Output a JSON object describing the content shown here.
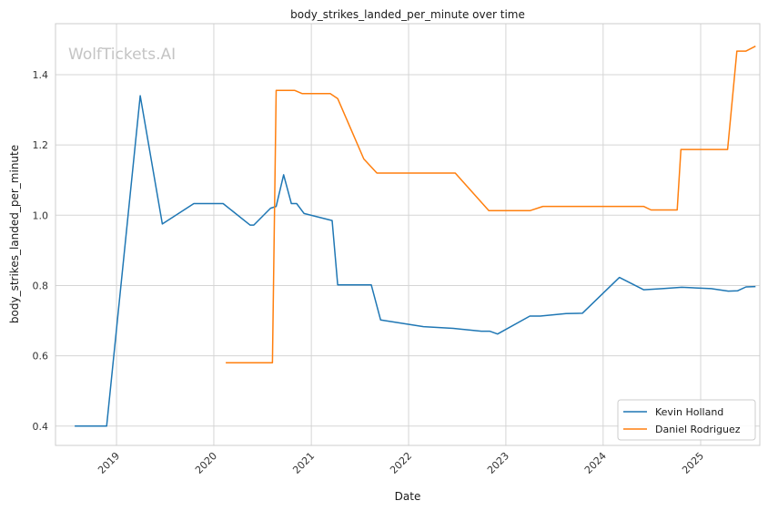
{
  "chart_data": {
    "type": "line",
    "title": "body_strikes_landed_per_minute over time",
    "xlabel": "Date",
    "ylabel": "body_strikes_landed_per_minute",
    "watermark": "WolfTickets.AI",
    "xlim": [
      "2018-05-17",
      "2025-08-11"
    ],
    "ylim": [
      0.345,
      1.545
    ],
    "y_ticks": [
      0.4,
      0.6,
      0.8,
      1.0,
      1.2,
      1.4
    ],
    "y_tick_labels": [
      "0.4",
      "0.6",
      "0.8",
      "1.0",
      "1.2",
      "1.4"
    ],
    "x_ticks": [
      "2019-01-01",
      "2020-01-01",
      "2021-01-01",
      "2022-01-01",
      "2023-01-01",
      "2024-01-01",
      "2025-01-01"
    ],
    "x_tick_labels": [
      "2019",
      "2020",
      "2021",
      "2022",
      "2023",
      "2024",
      "2025"
    ],
    "grid": true,
    "legend_position": "bottom-right",
    "series": [
      {
        "name": "Kevin Holland",
        "color": "#1f77b4",
        "points": [
          [
            "2018-07-28",
            0.4
          ],
          [
            "2018-11-25",
            0.4
          ],
          [
            "2019-03-31",
            1.34
          ],
          [
            "2019-06-22",
            0.975
          ],
          [
            "2019-10-18",
            1.033
          ],
          [
            "2020-02-05",
            1.033
          ],
          [
            "2020-05-16",
            0.972
          ],
          [
            "2020-05-30",
            0.972
          ],
          [
            "2020-08-01",
            1.02
          ],
          [
            "2020-08-22",
            1.025
          ],
          [
            "2020-09-19",
            1.115
          ],
          [
            "2020-10-18",
            1.033
          ],
          [
            "2020-11-07",
            1.033
          ],
          [
            "2020-12-05",
            1.005
          ],
          [
            "2021-03-20",
            0.985
          ],
          [
            "2021-04-10",
            0.802
          ],
          [
            "2021-08-14",
            0.802
          ],
          [
            "2021-09-18",
            0.702
          ],
          [
            "2022-02-26",
            0.683
          ],
          [
            "2022-06-18",
            0.678
          ],
          [
            "2022-10-01",
            0.67
          ],
          [
            "2022-11-01",
            0.67
          ],
          [
            "2022-12-01",
            0.662
          ],
          [
            "2023-04-01",
            0.713
          ],
          [
            "2023-05-10",
            0.713
          ],
          [
            "2023-08-15",
            0.72
          ],
          [
            "2023-10-15",
            0.721
          ],
          [
            "2024-03-02",
            0.823
          ],
          [
            "2024-06-01",
            0.788
          ],
          [
            "2024-08-10",
            0.791
          ],
          [
            "2024-10-22",
            0.795
          ],
          [
            "2025-02-10",
            0.791
          ],
          [
            "2025-04-15",
            0.784
          ],
          [
            "2025-05-20",
            0.785
          ],
          [
            "2025-06-20",
            0.796
          ],
          [
            "2025-07-26",
            0.797
          ]
        ]
      },
      {
        "name": "Daniel Rodriguez",
        "color": "#ff7f0e",
        "points": [
          [
            "2020-02-15",
            0.58
          ],
          [
            "2020-08-08",
            0.58
          ],
          [
            "2020-08-22",
            1.355
          ],
          [
            "2020-10-31",
            1.355
          ],
          [
            "2020-11-28",
            1.346
          ],
          [
            "2021-03-13",
            1.346
          ],
          [
            "2021-04-10",
            1.332
          ],
          [
            "2021-07-17",
            1.16
          ],
          [
            "2021-09-04",
            1.12
          ],
          [
            "2022-06-25",
            1.12
          ],
          [
            "2022-10-29",
            1.013
          ],
          [
            "2023-04-01",
            1.013
          ],
          [
            "2023-05-20",
            1.025
          ],
          [
            "2024-06-01",
            1.025
          ],
          [
            "2024-06-29",
            1.015
          ],
          [
            "2024-10-05",
            1.015
          ],
          [
            "2024-10-19",
            1.187
          ],
          [
            "2025-04-12",
            1.187
          ],
          [
            "2025-05-17",
            1.467
          ],
          [
            "2025-06-20",
            1.467
          ],
          [
            "2025-07-26",
            1.481
          ]
        ]
      }
    ]
  }
}
